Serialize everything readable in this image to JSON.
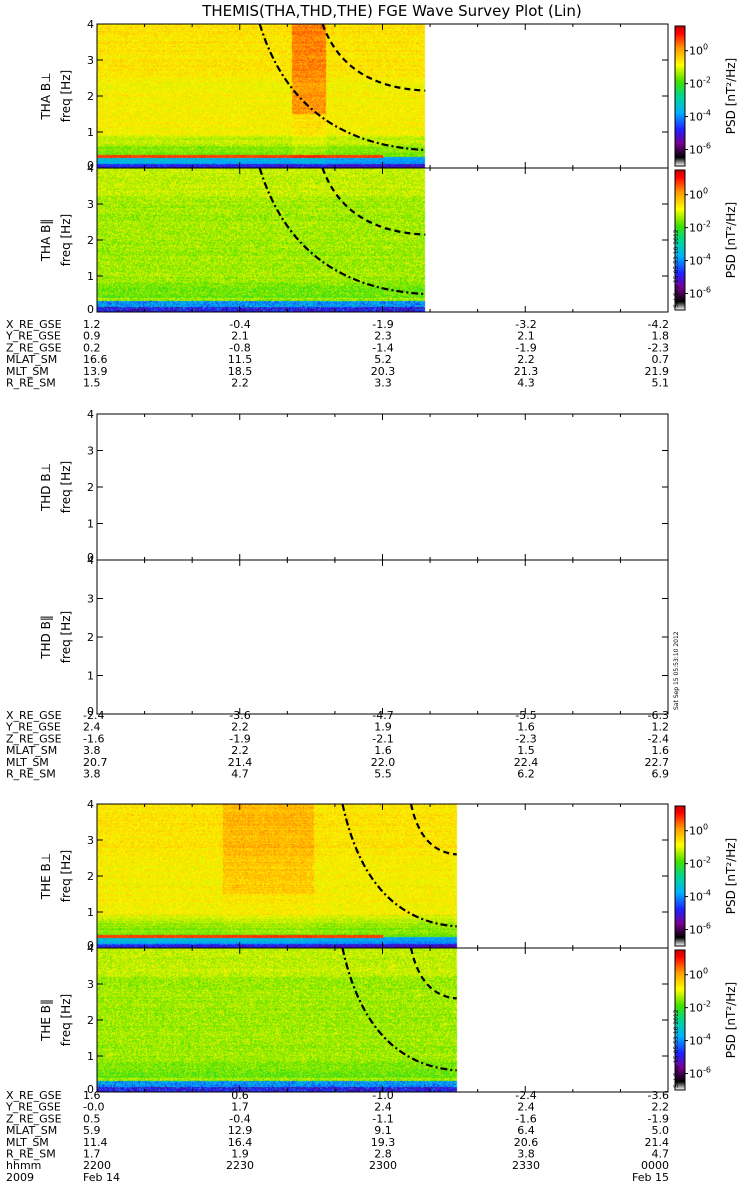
{
  "title": "THEMIS(THA,THD,THE) FGE Wave Survey Plot (Lin)",
  "colorbar": {
    "label": "PSD [nT²/Hz]",
    "ticks": [
      "10^0",
      "10^-2",
      "10^-4",
      "10^-6"
    ],
    "log_range": [
      -7,
      1.5
    ]
  },
  "stamp": "Sat Sep 15 05:53:10 2012",
  "chart_data": {
    "type": "heatmap",
    "x_time_range": [
      "2009-02-14 22:00",
      "2009-02-15 00:00"
    ],
    "freq_axis": {
      "ylim": [
        0,
        4
      ],
      "ticks": [
        "0",
        "1",
        "2",
        "3",
        "4"
      ],
      "unit": "Hz"
    },
    "probes": [
      {
        "id": "THA",
        "panels": [
          {
            "label": "THA B⊥",
            "ylabel": "freq [Hz]",
            "data_end_fraction": 0.575,
            "type": "perp",
            "has_colorbar": true,
            "has_stamp": false,
            "lines": [
              {
                "style": "dashdot",
                "x0": 0.285,
                "f0": 4.0,
                "x1": 0.575,
                "f1": 0.5
              },
              {
                "style": "dash",
                "x0": 0.395,
                "f0": 4.0,
                "x1": 0.575,
                "f1": 2.15
              }
            ]
          },
          {
            "label": "THA B‖",
            "ylabel": "freq [Hz]",
            "data_end_fraction": 0.575,
            "type": "par",
            "has_colorbar": true,
            "has_stamp": true,
            "lines": [
              {
                "style": "dashdot",
                "x0": 0.285,
                "f0": 4.0,
                "x1": 0.575,
                "f1": 0.5
              },
              {
                "style": "dash",
                "x0": 0.395,
                "f0": 4.0,
                "x1": 0.575,
                "f1": 2.15
              }
            ]
          }
        ],
        "ephemeris": {
          "labels": [
            "X_RE_GSE",
            "Y_RE_GSE",
            "Z_RE_GSE",
            "MLAT_SM",
            "MLT_SM",
            "R_RE_SM"
          ],
          "rows": [
            [
              "1.2",
              "-0.4",
              "-1.9",
              "-3.2",
              "-4.2"
            ],
            [
              "0.9",
              "2.1",
              "2.3",
              "2.1",
              "1.8"
            ],
            [
              "0.2",
              "-0.8",
              "-1.4",
              "-1.9",
              "-2.3"
            ],
            [
              "16.6",
              "11.5",
              "5.2",
              "2.2",
              "0.7"
            ],
            [
              "13.9",
              "18.5",
              "20.3",
              "21.3",
              "21.9"
            ],
            [
              "1.5",
              "2.2",
              "3.3",
              "4.3",
              "5.1"
            ]
          ]
        }
      },
      {
        "id": "THD",
        "panels": [
          {
            "label": "THD B⊥",
            "ylabel": "freq [Hz]",
            "data_end_fraction": 0,
            "type": "perp",
            "has_colorbar": false,
            "has_stamp": false,
            "lines": []
          },
          {
            "label": "THD B‖",
            "ylabel": "freq [Hz]",
            "data_end_fraction": 0,
            "type": "par",
            "has_colorbar": false,
            "has_stamp": true,
            "lines": []
          }
        ],
        "ephemeris": {
          "labels": [
            "X_RE_GSE",
            "Y_RE_GSE",
            "Z_RE_GSE",
            "MLAT_SM",
            "MLT_SM",
            "R_RE_SM"
          ],
          "rows": [
            [
              "-2.4",
              "-3.6",
              "-4.7",
              "-5.5",
              "-6.3"
            ],
            [
              "2.4",
              "2.2",
              "1.9",
              "1.6",
              "1.2"
            ],
            [
              "-1.6",
              "-1.9",
              "-2.1",
              "-2.3",
              "-2.4"
            ],
            [
              "3.8",
              "2.2",
              "1.6",
              "1.5",
              "1.6"
            ],
            [
              "20.7",
              "21.4",
              "22.0",
              "22.4",
              "22.7"
            ],
            [
              "3.8",
              "4.7",
              "5.5",
              "6.2",
              "6.9"
            ]
          ]
        }
      },
      {
        "id": "THE",
        "panels": [
          {
            "label": "THE B⊥",
            "ylabel": "freq [Hz]",
            "data_end_fraction": 0.63,
            "type": "perp",
            "has_colorbar": true,
            "has_stamp": false,
            "lines": [
              {
                "style": "dashdot",
                "x0": 0.43,
                "f0": 4.0,
                "x1": 0.63,
                "f1": 0.6
              },
              {
                "style": "dash",
                "x0": 0.55,
                "f0": 4.0,
                "x1": 0.63,
                "f1": 2.6
              }
            ]
          },
          {
            "label": "THE B‖",
            "ylabel": "freq [Hz]",
            "data_end_fraction": 0.63,
            "type": "par",
            "has_colorbar": true,
            "has_stamp": true,
            "lines": [
              {
                "style": "dashdot",
                "x0": 0.43,
                "f0": 4.0,
                "x1": 0.63,
                "f1": 0.6
              },
              {
                "style": "dash",
                "x0": 0.55,
                "f0": 4.0,
                "x1": 0.63,
                "f1": 2.6
              }
            ]
          }
        ],
        "ephemeris": {
          "labels": [
            "X_RE_GSE",
            "Y_RE_GSE",
            "Z_RE_GSE",
            "MLAT_SM",
            "MLT_SM",
            "R_RE_SM",
            "hhmm",
            "2009"
          ],
          "rows": [
            [
              "1.6",
              "0.6",
              "-1.0",
              "-2.4",
              "-3.6"
            ],
            [
              "-0.0",
              "1.7",
              "2.4",
              "2.4",
              "2.2"
            ],
            [
              "0.5",
              "-0.4",
              "-1.1",
              "-1.6",
              "-1.9"
            ],
            [
              "5.9",
              "12.9",
              "9.1",
              "6.4",
              "5.0"
            ],
            [
              "11.4",
              "16.4",
              "19.3",
              "20.6",
              "21.4"
            ],
            [
              "1.7",
              "1.9",
              "2.8",
              "3.8",
              "4.7"
            ],
            [
              "2200",
              "2230",
              "2300",
              "2330",
              "0000"
            ],
            [
              "Feb 14",
              "",
              "",
              "",
              "Feb 15"
            ]
          ]
        }
      }
    ]
  }
}
